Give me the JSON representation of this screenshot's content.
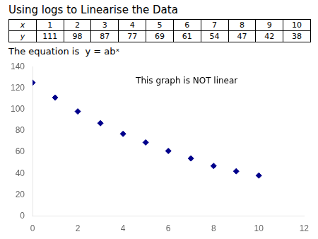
{
  "chart_data": {
    "type": "scatter",
    "title": "Using logs to Linearise the Data",
    "subtitle": "The equation is  y = abˣ",
    "annotation": "This graph is NOT linear",
    "table": [
      [
        "x",
        "1",
        "2",
        "3",
        "4",
        "5",
        "6",
        "7",
        "8",
        "9",
        "10"
      ],
      [
        "y",
        "111",
        "98",
        "87",
        "77",
        "69",
        "61",
        "54",
        "47",
        "42",
        "38"
      ]
    ],
    "x": [
      0,
      1,
      2,
      3,
      4,
      5,
      6,
      7,
      8,
      9,
      10
    ],
    "values": [
      125,
      111,
      98,
      87,
      77,
      69,
      61,
      54,
      47,
      42,
      38
    ],
    "color": "#00008B",
    "marker": "diamond",
    "xlim": [
      0,
      12
    ],
    "ylim": [
      0,
      140
    ],
    "xticks": [
      0,
      2,
      4,
      6,
      8,
      10,
      12
    ],
    "yticks": [
      0,
      20,
      40,
      60,
      80,
      100,
      120,
      140
    ],
    "grid": false
  }
}
